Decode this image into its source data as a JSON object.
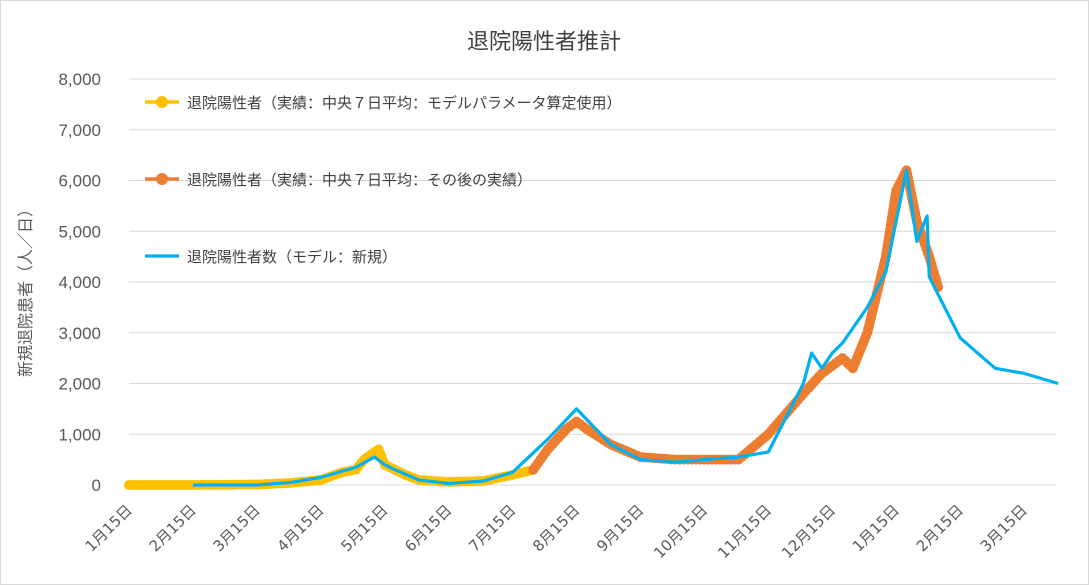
{
  "chart_data": {
    "type": "line",
    "title": "退院陽性者推計",
    "ylabel": "新規退院患者（人／日）",
    "xlabel": "",
    "ylim": [
      0,
      8000
    ],
    "yticks": [
      "0",
      "1,000",
      "2,000",
      "3,000",
      "4,000",
      "5,000",
      "6,000",
      "7,000",
      "8,000"
    ],
    "yticks_values": [
      0,
      1000,
      2000,
      3000,
      4000,
      5000,
      6000,
      7000,
      8000
    ],
    "x_ticks": [
      "1月15日",
      "2月15日",
      "3月15日",
      "4月15日",
      "5月15日",
      "6月15日",
      "7月15日",
      "8月15日",
      "9月15日",
      "10月15日",
      "11月15日",
      "12月15日",
      "1月15日",
      "2月15日",
      "3月15日"
    ],
    "x_range_months": [
      0,
      14.5
    ],
    "grid": true,
    "legend_position": "top-left",
    "series": [
      {
        "name": "退院陽性者（実績：中央７日平均：モデルパラメータ算定使用）",
        "color": "#FFC000",
        "style": "marker-line",
        "x": [
          "1月15日",
          "2月15日",
          "3月15日",
          "4月1日",
          "4月15日",
          "4月25日",
          "5月1日",
          "5月5日",
          "5月10日",
          "5月12日",
          "5月15日",
          "5月20日",
          "5月25日",
          "6月1日",
          "6月15日",
          "7月1日",
          "7月15日",
          "7月25日"
        ],
        "values": [
          0,
          0,
          10,
          40,
          100,
          250,
          300,
          500,
          650,
          700,
          400,
          300,
          200,
          100,
          60,
          80,
          200,
          300
        ]
      },
      {
        "name": "退院陽性者（実績：中央７日平均：その後の実績）",
        "color": "#ED7D31",
        "style": "marker-line",
        "x": [
          "7月25日",
          "8月1日",
          "8月10日",
          "8月15日",
          "8月20日",
          "9月1日",
          "9月15日",
          "10月1日",
          "10月15日",
          "11月1日",
          "11月15日",
          "12月1日",
          "12月10日",
          "12月20日",
          "12月25日",
          "1月1日",
          "1月10日",
          "1月15日",
          "1月20日",
          "1月25日",
          "2月1日",
          "2月5日"
        ],
        "values": [
          300,
          700,
          1100,
          1250,
          1100,
          800,
          550,
          500,
          500,
          500,
          1000,
          1800,
          2200,
          2500,
          2300,
          3000,
          4500,
          5800,
          6200,
          5200,
          4500,
          3900
        ]
      },
      {
        "name": "退院陽性者数（モデル：新規）",
        "color": "#00B0F0",
        "style": "line",
        "x": [
          "2月15日",
          "3月15日",
          "4月1日",
          "4月15日",
          "5月1日",
          "5月10日",
          "5月15日",
          "5月20日",
          "6月1日",
          "6月15日",
          "7月1日",
          "7月15日",
          "8月1日",
          "8月15日",
          "9月1日",
          "9月15日",
          "10月1日",
          "10月15日",
          "11月1日",
          "11月15日",
          "12月1日",
          "12月5日",
          "12月10日",
          "12月15日",
          "12月20日",
          "1月1日",
          "1月10日",
          "1月20日",
          "1月25日",
          "1月30日",
          "2月1日",
          "2月15日",
          "3月1日",
          "3月15日",
          "4月1日"
        ],
        "values": [
          0,
          0,
          50,
          150,
          350,
          550,
          400,
          300,
          100,
          30,
          80,
          250,
          900,
          1500,
          800,
          500,
          450,
          500,
          550,
          650,
          2000,
          2600,
          2300,
          2600,
          2800,
          3500,
          4200,
          6200,
          4800,
          5300,
          4100,
          2900,
          2300,
          2200,
          2000
        ]
      }
    ]
  }
}
